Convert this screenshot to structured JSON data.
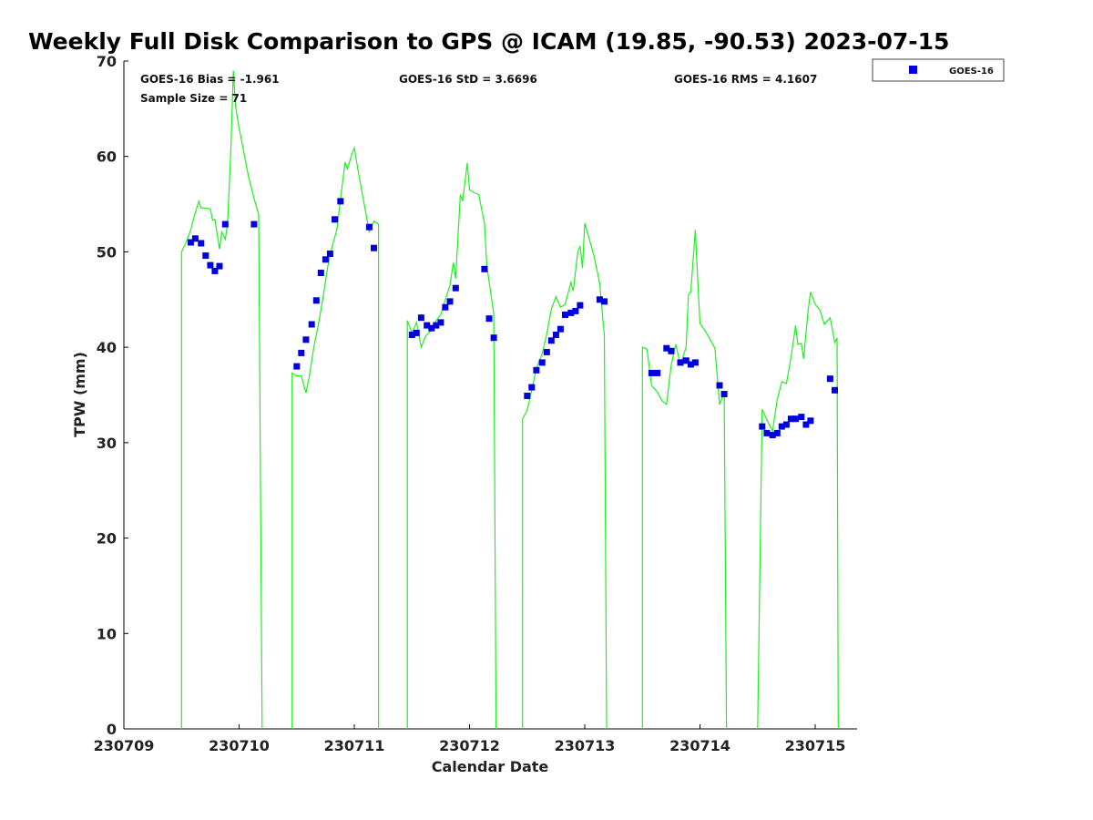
{
  "chart_data": {
    "type": "line",
    "title": "Weekly Full Disk Comparison to GPS @ ICAM (19.85, -90.53) 2023-07-15",
    "xlabel": "Calendar Date",
    "ylabel": "TPW (mm)",
    "xlim": [
      230709,
      230715.3
    ],
    "ylim": [
      0,
      70
    ],
    "x_ticks": [
      230709,
      230710,
      230711,
      230712,
      230713,
      230714,
      230715
    ],
    "x_tick_labels": [
      "230709",
      "230710",
      "230711",
      "230712",
      "230713",
      "230714",
      "230715"
    ],
    "y_ticks": [
      0,
      10,
      20,
      30,
      40,
      50,
      60,
      70
    ],
    "y_tick_labels": [
      "0",
      "10",
      "20",
      "30",
      "40",
      "50",
      "60",
      "70"
    ],
    "grid": false,
    "legend_position": "top-right",
    "stats": {
      "bias": "GOES-16 Bias = -1.961",
      "std": "GOES-16 StD = 3.6696",
      "rms": "GOES-16 RMS = 4.1607",
      "sample": "Sample Size = 71"
    },
    "series": [
      {
        "name": "GOES-16",
        "kind": "scatter",
        "color": "#0000dd",
        "marker": "square",
        "points": [
          [
            230709.58,
            51.0
          ],
          [
            230709.62,
            51.4
          ],
          [
            230709.67,
            50.9
          ],
          [
            230709.71,
            49.6
          ],
          [
            230709.75,
            48.6
          ],
          [
            230709.79,
            48.0
          ],
          [
            230709.83,
            48.5
          ],
          [
            230709.88,
            52.9
          ],
          [
            230710.13,
            52.9
          ],
          [
            230710.5,
            38.0
          ],
          [
            230710.54,
            39.4
          ],
          [
            230710.58,
            40.8
          ],
          [
            230710.63,
            42.4
          ],
          [
            230710.67,
            44.9
          ],
          [
            230710.71,
            47.8
          ],
          [
            230710.75,
            49.2
          ],
          [
            230710.79,
            49.8
          ],
          [
            230710.83,
            53.4
          ],
          [
            230710.88,
            55.3
          ],
          [
            230711.13,
            52.6
          ],
          [
            230711.17,
            50.4
          ],
          [
            230711.5,
            41.3
          ],
          [
            230711.54,
            41.5
          ],
          [
            230711.58,
            43.1
          ],
          [
            230711.63,
            42.3
          ],
          [
            230711.67,
            42.0
          ],
          [
            230711.71,
            42.3
          ],
          [
            230711.75,
            42.6
          ],
          [
            230711.79,
            44.2
          ],
          [
            230711.83,
            44.8
          ],
          [
            230711.88,
            46.2
          ],
          [
            230712.13,
            48.2
          ],
          [
            230712.17,
            43.0
          ],
          [
            230712.21,
            41.0
          ],
          [
            230712.5,
            34.9
          ],
          [
            230712.54,
            35.8
          ],
          [
            230712.58,
            37.6
          ],
          [
            230712.63,
            38.4
          ],
          [
            230712.67,
            39.5
          ],
          [
            230712.71,
            40.7
          ],
          [
            230712.75,
            41.3
          ],
          [
            230712.79,
            41.9
          ],
          [
            230712.83,
            43.4
          ],
          [
            230712.88,
            43.6
          ],
          [
            230712.92,
            43.8
          ],
          [
            230712.96,
            44.4
          ],
          [
            230713.13,
            45.0
          ],
          [
            230713.17,
            44.8
          ],
          [
            230713.58,
            37.3
          ],
          [
            230713.63,
            37.3
          ],
          [
            230713.71,
            39.9
          ],
          [
            230713.75,
            39.6
          ],
          [
            230713.83,
            38.4
          ],
          [
            230713.88,
            38.6
          ],
          [
            230713.92,
            38.2
          ],
          [
            230713.96,
            38.4
          ],
          [
            230714.17,
            36.0
          ],
          [
            230714.21,
            35.1
          ],
          [
            230714.54,
            31.7
          ],
          [
            230714.58,
            31.0
          ],
          [
            230714.63,
            30.8
          ],
          [
            230714.67,
            31.0
          ],
          [
            230714.71,
            31.7
          ],
          [
            230714.75,
            31.9
          ],
          [
            230714.79,
            32.5
          ],
          [
            230714.83,
            32.5
          ],
          [
            230714.88,
            32.7
          ],
          [
            230714.92,
            31.9
          ],
          [
            230714.96,
            32.3
          ],
          [
            230715.13,
            36.7
          ],
          [
            230715.17,
            35.5
          ]
        ]
      },
      {
        "name": "GPS",
        "kind": "line",
        "color": "#22ee22",
        "segments": [
          [
            [
              230709.5,
              0
            ],
            [
              230709.5,
              50.0
            ],
            [
              230709.54,
              51.0
            ],
            [
              230709.58,
              52.3
            ],
            [
              230709.62,
              54.1
            ],
            [
              230709.65,
              55.3
            ],
            [
              230709.67,
              54.6
            ],
            [
              230709.71,
              54.6
            ],
            [
              230709.75,
              54.5
            ],
            [
              230709.77,
              53.3
            ],
            [
              230709.79,
              53.4
            ],
            [
              230709.81,
              51.8
            ],
            [
              230709.83,
              50.3
            ],
            [
              230709.85,
              52.1
            ],
            [
              230709.88,
              51.3
            ],
            [
              230709.9,
              52.9
            ],
            [
              230709.93,
              61.0
            ],
            [
              230709.95,
              69.0
            ],
            [
              230709.97,
              65.2
            ],
            [
              230710.0,
              63.0
            ],
            [
              230710.04,
              60.5
            ],
            [
              230710.08,
              58.0
            ],
            [
              230710.13,
              55.6
            ],
            [
              230710.17,
              53.9
            ],
            [
              230710.2,
              0
            ]
          ],
          [
            [
              230710.46,
              0
            ],
            [
              230710.46,
              37.3
            ],
            [
              230710.5,
              37.0
            ],
            [
              230710.54,
              37.0
            ],
            [
              230710.58,
              35.2
            ],
            [
              230710.61,
              37.0
            ],
            [
              230710.65,
              40.1
            ],
            [
              230710.69,
              42.5
            ],
            [
              230710.73,
              45.3
            ],
            [
              230710.77,
              48.5
            ],
            [
              230710.8,
              50.2
            ],
            [
              230710.85,
              52.4
            ],
            [
              230710.88,
              55.5
            ],
            [
              230710.92,
              59.4
            ],
            [
              230710.94,
              58.7
            ],
            [
              230710.98,
              60.3
            ],
            [
              230711.0,
              60.9
            ],
            [
              230711.04,
              58.0
            ],
            [
              230711.08,
              55.4
            ],
            [
              230711.13,
              52.1
            ],
            [
              230711.17,
              53.2
            ],
            [
              230711.21,
              52.9
            ],
            [
              230711.21,
              0
            ]
          ],
          [
            [
              230711.46,
              0
            ],
            [
              230711.46,
              42.8
            ],
            [
              230711.5,
              41.5
            ],
            [
              230711.54,
              42.6
            ],
            [
              230711.58,
              40.0
            ],
            [
              230711.62,
              41.2
            ],
            [
              230711.67,
              41.8
            ],
            [
              230711.71,
              42.8
            ],
            [
              230711.75,
              43.4
            ],
            [
              230711.79,
              45.0
            ],
            [
              230711.83,
              46.5
            ],
            [
              230711.86,
              48.9
            ],
            [
              230711.88,
              47.2
            ],
            [
              230711.92,
              56.0
            ],
            [
              230711.94,
              55.3
            ],
            [
              230711.98,
              59.3
            ],
            [
              230712.0,
              56.5
            ],
            [
              230712.04,
              56.2
            ],
            [
              230712.08,
              56.0
            ],
            [
              230712.13,
              53.0
            ],
            [
              230712.15,
              48.5
            ],
            [
              230712.21,
              43.5
            ],
            [
              230712.23,
              0
            ]
          ],
          [
            [
              230712.46,
              0
            ],
            [
              230712.46,
              32.5
            ],
            [
              230712.5,
              33.4
            ],
            [
              230712.54,
              35.5
            ],
            [
              230712.58,
              37.8
            ],
            [
              230712.63,
              39.3
            ],
            [
              230712.67,
              41.4
            ],
            [
              230712.71,
              44.0
            ],
            [
              230712.75,
              45.3
            ],
            [
              230712.79,
              44.2
            ],
            [
              230712.83,
              44.5
            ],
            [
              230712.88,
              46.8
            ],
            [
              230712.9,
              45.9
            ],
            [
              230712.94,
              50.0
            ],
            [
              230712.96,
              50.6
            ],
            [
              230712.98,
              48.3
            ],
            [
              230713.0,
              53.0
            ],
            [
              230713.04,
              51.3
            ],
            [
              230713.08,
              49.6
            ],
            [
              230713.13,
              46.7
            ],
            [
              230713.17,
              41.2
            ],
            [
              230713.19,
              0
            ]
          ],
          [
            [
              230713.5,
              0
            ],
            [
              230713.5,
              40.0
            ],
            [
              230713.54,
              39.8
            ],
            [
              230713.58,
              36.0
            ],
            [
              230713.63,
              35.3
            ],
            [
              230713.67,
              34.4
            ],
            [
              230713.71,
              34.0
            ],
            [
              230713.75,
              38.1
            ],
            [
              230713.79,
              40.3
            ],
            [
              230713.83,
              38.2
            ],
            [
              230713.88,
              40.0
            ],
            [
              230713.9,
              45.5
            ],
            [
              230713.92,
              45.8
            ],
            [
              230713.94,
              49.0
            ],
            [
              230713.96,
              52.3
            ],
            [
              230713.98,
              47.1
            ],
            [
              230714.0,
              42.5
            ],
            [
              230714.04,
              41.8
            ],
            [
              230714.08,
              41.0
            ],
            [
              230714.13,
              39.9
            ],
            [
              230714.17,
              34.0
            ],
            [
              230714.21,
              35.3
            ],
            [
              230714.23,
              0
            ]
          ],
          [
            [
              230714.5,
              0
            ],
            [
              230714.54,
              33.5
            ],
            [
              230714.58,
              32.4
            ],
            [
              230714.63,
              31.2
            ],
            [
              230714.67,
              34.5
            ],
            [
              230714.71,
              36.4
            ],
            [
              230714.75,
              36.2
            ],
            [
              230714.79,
              38.9
            ],
            [
              230714.83,
              42.3
            ],
            [
              230714.85,
              40.3
            ],
            [
              230714.88,
              40.4
            ],
            [
              230714.9,
              38.8
            ],
            [
              230714.94,
              44.0
            ],
            [
              230714.96,
              45.8
            ],
            [
              230715.0,
              44.5
            ],
            [
              230715.04,
              43.9
            ],
            [
              230715.08,
              42.4
            ],
            [
              230715.13,
              43.1
            ],
            [
              230715.17,
              40.5
            ],
            [
              230715.19,
              41.0
            ],
            [
              230715.2,
              0
            ]
          ]
        ]
      }
    ]
  }
}
